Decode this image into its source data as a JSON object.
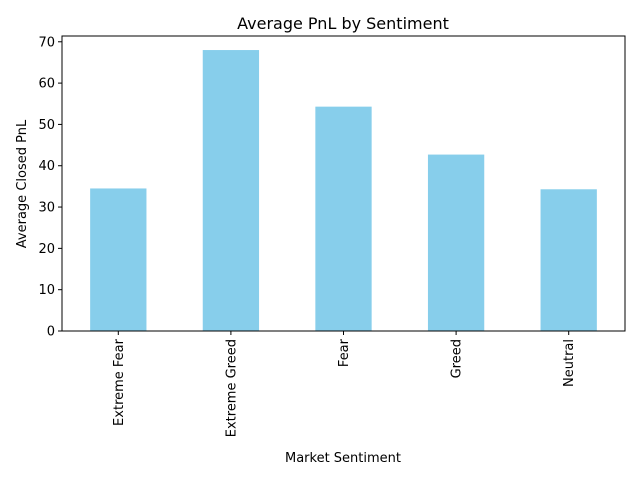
{
  "chart_data": {
    "type": "bar",
    "title": "Average PnL by Sentiment",
    "xlabel": "Market Sentiment",
    "ylabel": "Average Closed PnL",
    "categories": [
      "Extreme Fear",
      "Extreme Greed",
      "Fear",
      "Greed",
      "Neutral"
    ],
    "values": [
      34.5,
      68.0,
      54.3,
      42.7,
      34.3
    ],
    "ylim": [
      0,
      71.4
    ],
    "yticks": [
      0,
      10,
      20,
      30,
      40,
      50,
      60,
      70
    ],
    "x_tick_rotation": "vertical",
    "grid": false,
    "legend": "none",
    "bar_color": "#87ceeb",
    "axis_color": "#000000"
  }
}
